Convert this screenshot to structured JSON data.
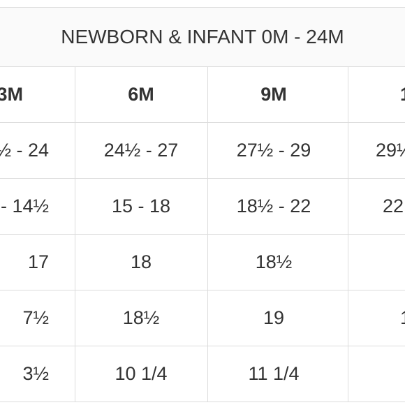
{
  "table": {
    "title": "NEWBORN & INFANT 0M - 24M",
    "rows": [
      [
        "3M",
        "6M",
        "9M",
        "1"
      ],
      [
        "½ - 24",
        "24½ - 27",
        "27½ - 29",
        "29½"
      ],
      [
        "- 14½",
        "15 - 18",
        "18½ - 22",
        "22"
      ],
      [
        "17",
        "18",
        "18½",
        ""
      ],
      [
        "7½",
        "18½",
        "19",
        "1"
      ],
      [
        "3½",
        "10 1/4",
        "11 1/4",
        ""
      ]
    ]
  }
}
